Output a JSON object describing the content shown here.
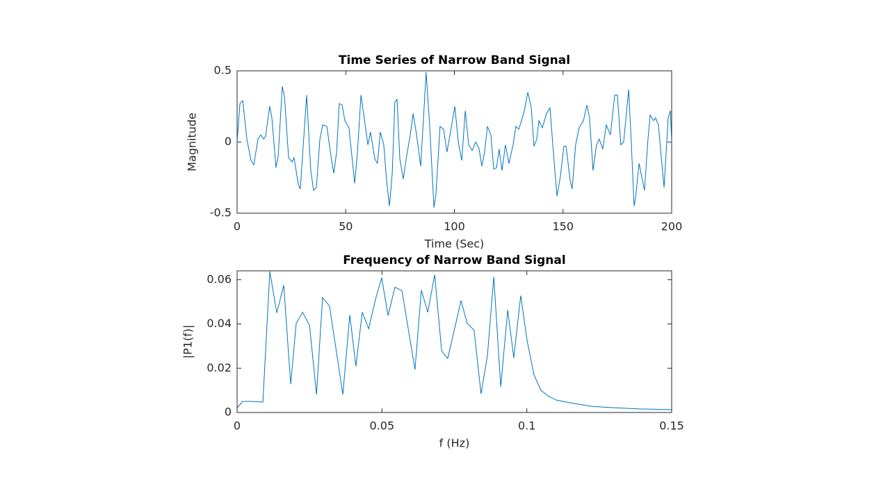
{
  "chart_data": [
    {
      "type": "line",
      "title": "Time Series of Narrow Band Signal",
      "x_label": "Time (Sec)",
      "y_label": "Magnitude",
      "xlim": [
        0,
        200
      ],
      "ylim": [
        -0.5,
        0.5
      ],
      "xticks": [
        0,
        50,
        100,
        150,
        200
      ],
      "yticks": [
        -0.5,
        0,
        0.5
      ],
      "series": [
        {
          "color": "#0072bd",
          "x": [
            0,
            1.3,
            2.6,
            4.5,
            6.4,
            7.7,
            9.6,
            10.9,
            12.2,
            13.1,
            15.0,
            16.0,
            17.9,
            18.9,
            20.8,
            21.8,
            23.7,
            25.3,
            26.2,
            28.2,
            29.1,
            32.0,
            33.9,
            35.2,
            36.5,
            38.1,
            39.4,
            41.3,
            43.2,
            44.5,
            45.8,
            47.0,
            48.3,
            49.6,
            51.5,
            54.1,
            55.4,
            57.0,
            58.2,
            60.2,
            61.4,
            63.4,
            64.6,
            65.9,
            67.5,
            68.8,
            70.1,
            71.4,
            72.6,
            73.6,
            74.9,
            76.5,
            77.8,
            79.7,
            81.0,
            82.6,
            84.5,
            87.0,
            88.6,
            90.6,
            91.5,
            93.4,
            95.0,
            96.6,
            98.2,
            100.2,
            101.8,
            103.4,
            105.0,
            106.6,
            108.2,
            109.8,
            111.4,
            112.6,
            113.9,
            115.2,
            116.8,
            118.1,
            119.4,
            120.6,
            121.9,
            123.5,
            125.1,
            127.0,
            128.3,
            129.6,
            130.9,
            132.2,
            133.8,
            135.4,
            136.6,
            137.9,
            138.9,
            140.5,
            142.4,
            144.0,
            145.3,
            147.2,
            148.8,
            150.4,
            151.4,
            153.3,
            154.2,
            155.8,
            157.4,
            159.4,
            161.0,
            162.2,
            163.8,
            165.4,
            166.7,
            168.3,
            169.9,
            171.8,
            173.8,
            175.0,
            176.6,
            177.9,
            180.2,
            181.4,
            182.7,
            183.4,
            185.0,
            185.9,
            187.5,
            189.1,
            190.1,
            191.7,
            192.6,
            193.9,
            195.2,
            196.5,
            198.4,
            199.4,
            200
          ],
          "values": [
            0,
            0.27,
            0.29,
            0.02,
            -0.13,
            -0.16,
            0.02,
            0.05,
            0.02,
            0.04,
            0.25,
            0.17,
            -0.18,
            -0.1,
            0.39,
            0.32,
            -0.11,
            -0.14,
            -0.11,
            -0.3,
            -0.33,
            0.33,
            -0.2,
            -0.34,
            -0.32,
            0.02,
            0.12,
            0.11,
            -0.1,
            -0.22,
            -0.07,
            0.27,
            0.26,
            0.15,
            0.1,
            -0.29,
            -0.07,
            0.33,
            0.2,
            -0.02,
            0.07,
            -0.12,
            -0.15,
            0.07,
            -0.02,
            -0.27,
            -0.45,
            -0.22,
            0.28,
            0.3,
            -0.12,
            -0.26,
            -0.12,
            0.05,
            0.2,
            0.05,
            -0.17,
            0.49,
            0.12,
            -0.46,
            -0.37,
            0.11,
            0.09,
            -0.07,
            0.07,
            0.25,
            0,
            -0.13,
            0.22,
            -0.02,
            -0.06,
            0,
            -0.05,
            -0.17,
            -0.07,
            0.11,
            0.05,
            -0.19,
            -0.18,
            -0.05,
            -0.2,
            -0.02,
            -0.15,
            -0.02,
            0.11,
            0.09,
            0.15,
            0.22,
            0.35,
            0.24,
            -0.03,
            0.02,
            0.15,
            0.1,
            0.2,
            0.24,
            -0.02,
            -0.38,
            -0.24,
            -0.03,
            -0.03,
            -0.27,
            -0.33,
            -0.02,
            0.1,
            0.15,
            0.26,
            0.17,
            -0.2,
            -0.02,
            0.02,
            -0.05,
            0.12,
            0.05,
            0.33,
            0.33,
            -0.02,
            0,
            0.37,
            0,
            -0.45,
            -0.39,
            -0.15,
            -0.22,
            -0.34,
            0.02,
            0.19,
            0.15,
            0.17,
            0.12,
            -0.1,
            -0.32,
            0.17,
            0.22,
            0
          ]
        }
      ]
    },
    {
      "type": "line",
      "title": "Frequency of Narrow Band Signal",
      "x_label": "f (Hz)",
      "y_label": "|P1(f)|",
      "xlim": [
        0,
        0.15
      ],
      "ylim": [
        0,
        0.064
      ],
      "xticks": [
        0,
        0.05,
        0.1,
        0.15
      ],
      "yticks": [
        0,
        0.02,
        0.04,
        0.06
      ],
      "series": [
        {
          "color": "#0072bd",
          "x": [
            0,
            0.0019,
            0.0048,
            0.0089,
            0.0113,
            0.0137,
            0.0161,
            0.0185,
            0.0204,
            0.0226,
            0.025,
            0.0274,
            0.0295,
            0.0319,
            0.0365,
            0.0389,
            0.041,
            0.0432,
            0.0454,
            0.0478,
            0.0499,
            0.0521,
            0.0545,
            0.0569,
            0.0614,
            0.0636,
            0.0658,
            0.0682,
            0.0706,
            0.0727,
            0.0773,
            0.0794,
            0.0818,
            0.0842,
            0.0864,
            0.0886,
            0.091,
            0.0934,
            0.0955,
            0.0979,
            0.1001,
            0.1025,
            0.1049,
            0.1073,
            0.1102,
            0.115,
            0.1222,
            0.1294,
            0.139,
            0.15
          ],
          "values": [
            0.002,
            0.005,
            0.005,
            0.0047,
            0.0637,
            0.045,
            0.0575,
            0.0128,
            0.0403,
            0.0453,
            0.0394,
            0.0081,
            0.0519,
            0.0481,
            0.0081,
            0.0441,
            0.0209,
            0.0453,
            0.0378,
            0.0513,
            0.0609,
            0.0438,
            0.0566,
            0.055,
            0.0194,
            0.0553,
            0.0453,
            0.0622,
            0.0278,
            0.0244,
            0.0506,
            0.0403,
            0.0372,
            0.0084,
            0.0256,
            0.0613,
            0.0116,
            0.0463,
            0.0247,
            0.0528,
            0.0325,
            0.0169,
            0.01,
            0.0075,
            0.0056,
            0.0044,
            0.0028,
            0.0022,
            0.0016,
            0.0013
          ]
        }
      ]
    }
  ]
}
